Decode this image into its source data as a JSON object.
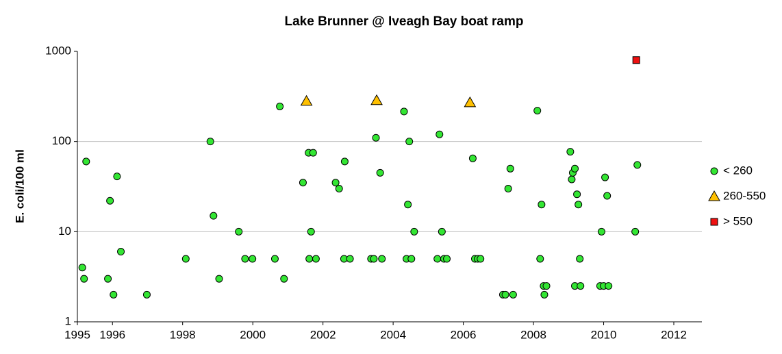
{
  "chart_data": {
    "type": "scatter",
    "title": "Lake Brunner @ Iveagh Bay boat ramp",
    "y_label": "E. coli/100 ml",
    "log_y": true,
    "grid": true,
    "legend": "right",
    "xlim": [
      1995,
      2012.8
    ],
    "ylim": [
      1,
      1000
    ],
    "xticks": [
      1995,
      1996,
      1998,
      2000,
      2002,
      2004,
      2006,
      2008,
      2010,
      2012
    ],
    "yticks": [
      1,
      10,
      100,
      1000
    ],
    "series": [
      {
        "name": "< 260",
        "color": "#33e633",
        "marker": "circle",
        "x": [
          1995.14,
          1995.19,
          1995.25,
          1995.87,
          1995.93,
          1996.03,
          1996.13,
          1996.24,
          1996.98,
          1998.09,
          1998.79,
          1998.88,
          1999.04,
          1999.6,
          1999.78,
          1999.99,
          2000.63,
          2000.77,
          2000.89,
          2001.43,
          2001.59,
          2001.72,
          2001.61,
          2001.66,
          2001.8,
          2002.36,
          2002.46,
          2002.62,
          2002.6,
          2002.77,
          2003.37,
          2003.45,
          2003.51,
          2003.63,
          2003.68,
          2004.31,
          2004.38,
          2004.42,
          2004.46,
          2004.52,
          2004.6,
          2005.26,
          2005.32,
          2005.39,
          2005.45,
          2005.53,
          2006.27,
          2006.33,
          2006.41,
          2006.49,
          2007.13,
          2007.2,
          2007.28,
          2007.34,
          2007.42,
          2008.11,
          2008.19,
          2008.23,
          2008.29,
          2008.31,
          2008.37,
          2009.05,
          2009.09,
          2009.12,
          2009.18,
          2009.24,
          2009.28,
          2009.32,
          2009.18,
          2009.34,
          2009.9,
          2009.94,
          2010.0,
          2010.04,
          2010.1,
          2010.14,
          2010.9,
          2010.96
        ],
        "values": [
          4,
          3,
          60,
          3,
          22,
          2,
          41,
          6,
          2,
          5,
          100,
          15,
          3,
          10,
          5,
          5,
          5,
          245,
          3,
          35,
          75,
          75,
          5,
          10,
          5,
          35,
          30,
          60,
          5,
          5,
          5,
          5,
          110,
          45,
          5,
          215,
          5,
          20,
          100,
          5,
          10,
          5,
          120,
          10,
          5,
          5,
          65,
          5,
          5,
          5,
          2,
          2,
          30,
          50,
          2,
          220,
          5,
          20,
          2.5,
          2,
          2.5,
          77,
          38,
          45,
          50,
          26,
          20,
          5,
          2.5,
          2.5,
          2.5,
          10,
          2.5,
          40,
          25,
          2.5,
          10,
          55
        ]
      },
      {
        "name": "260-550",
        "color": "#ffc000",
        "marker": "triangle",
        "x": [
          2001.53,
          2003.53,
          2006.19
        ],
        "values": [
          280,
          285,
          270
        ]
      },
      {
        "name": "> 550",
        "color": "#ee1111",
        "marker": "square",
        "x": [
          2010.93
        ],
        "values": [
          800
        ]
      }
    ]
  }
}
